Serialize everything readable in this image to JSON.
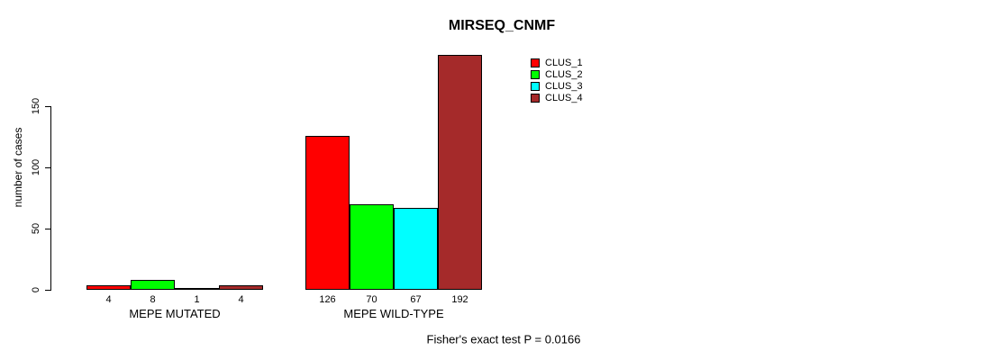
{
  "chart_data": {
    "type": "bar",
    "title": "MIRSEQ_CNMF",
    "ylabel": "number of cases",
    "xlabel": "",
    "ylim": [
      0,
      195
    ],
    "yticks": [
      0,
      50,
      100,
      150
    ],
    "grid": false,
    "legend_position": "top-right-inside",
    "categories": [
      "MEPE MUTATED",
      "MEPE WILD-TYPE"
    ],
    "series": [
      {
        "name": "CLUS_1",
        "color": "#FF0000",
        "values": [
          4,
          126
        ]
      },
      {
        "name": "CLUS_2",
        "color": "#00FF00",
        "values": [
          8,
          70
        ]
      },
      {
        "name": "CLUS_3",
        "color": "#00FFFF",
        "values": [
          1,
          67
        ]
      },
      {
        "name": "CLUS_4",
        "color": "#A52A2A",
        "values": [
          4,
          192
        ]
      }
    ],
    "bar_value_labels_shown": true,
    "annotation": "Fisher's exact test P = 0.0166",
    "axis_color": "#000000",
    "background_color": "#FFFFFF"
  }
}
